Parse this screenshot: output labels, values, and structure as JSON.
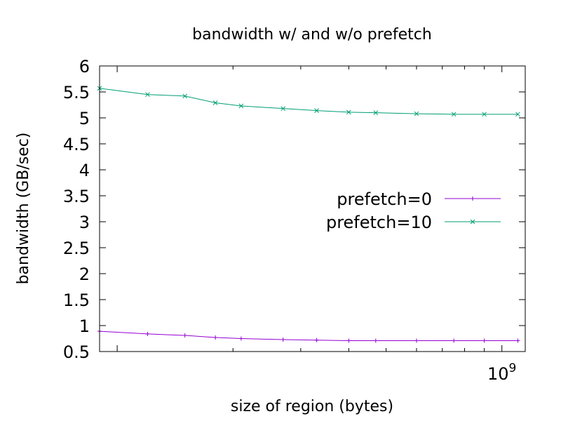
{
  "chart_data": {
    "type": "line",
    "title": "bandwidth w/ and w/o prefetch",
    "xlabel": "size of region (bytes)",
    "ylabel": "bandwidth (GB/sec)",
    "x_scale": "log",
    "x_tick_labels": [
      {
        "base": "10",
        "exp": "9"
      }
    ],
    "xlim": [
      90000000,
      1150000000
    ],
    "ylim": [
      0.5,
      6
    ],
    "y_ticks": [
      "0.5",
      "1",
      "1.5",
      "2",
      "2.5",
      "3",
      "3.5",
      "4",
      "4.5",
      "5",
      "5.5",
      "6"
    ],
    "grid": false,
    "legend_position": "right",
    "x": [
      90000000,
      120000000,
      150000000,
      180000000,
      210000000,
      270000000,
      330000000,
      400000000,
      470000000,
      600000000,
      750000000,
      900000000,
      1100000000
    ],
    "series": [
      {
        "name": "prefetch=0",
        "color": "#9400d3",
        "marker": "plus",
        "values": [
          0.89,
          0.84,
          0.81,
          0.77,
          0.75,
          0.73,
          0.72,
          0.71,
          0.71,
          0.71,
          0.71,
          0.71,
          0.71
        ]
      },
      {
        "name": "prefetch=10",
        "color": "#009e73",
        "marker": "cross",
        "values": [
          5.57,
          5.45,
          5.42,
          5.29,
          5.23,
          5.18,
          5.14,
          5.11,
          5.1,
          5.08,
          5.07,
          5.07,
          5.07
        ]
      }
    ]
  }
}
